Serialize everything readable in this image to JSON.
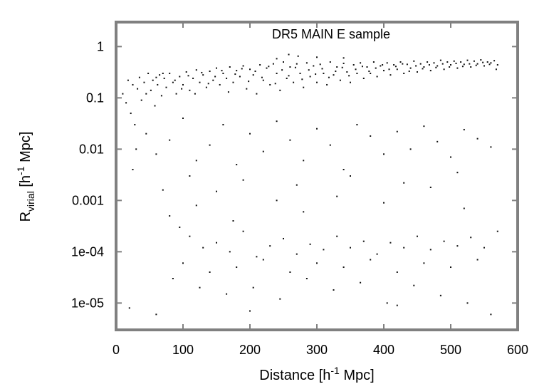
{
  "chart_data": {
    "type": "scatter",
    "title": "DR5 MAIN E sample",
    "xlabel": {
      "before": "Distance [h",
      "sup": "-1",
      "after": " Mpc]"
    },
    "ylabel": {
      "main": "R",
      "sub": "virial",
      "mid": " [h",
      "sup": "-1",
      "after": " Mpc]"
    },
    "xlim": [
      0,
      600
    ],
    "ylim": [
      3e-06,
      3
    ],
    "yscale": "log",
    "grid": false,
    "legend": "none",
    "x_ticks": [
      0,
      100,
      200,
      300,
      400,
      500,
      600
    ],
    "x_tick_labels": [
      "0",
      "100",
      "200",
      "300",
      "400",
      "500",
      "600"
    ],
    "y_ticks": [
      1,
      0.1,
      0.01,
      0.001,
      0.0001,
      1e-05
    ],
    "y_tick_labels": [
      "1",
      "0.1",
      "0.01",
      "0.001",
      "1e-04",
      "1e-05"
    ],
    "colors": {
      "points": "#111111",
      "axes": "#808080",
      "text": "#000000"
    },
    "series": [
      {
        "points": [
          [
            10,
            0.12
          ],
          [
            15,
            0.08
          ],
          [
            18,
            0.22
          ],
          [
            22,
            0.05
          ],
          [
            25,
            0.18
          ],
          [
            28,
            0.03
          ],
          [
            32,
            0.15
          ],
          [
            35,
            0.25
          ],
          [
            38,
            0.09
          ],
          [
            42,
            0.2
          ],
          [
            45,
            0.12
          ],
          [
            48,
            0.3
          ],
          [
            52,
            0.14
          ],
          [
            55,
            0.22
          ],
          [
            58,
            0.07
          ],
          [
            62,
            0.18
          ],
          [
            65,
            0.28
          ],
          [
            68,
            0.11
          ],
          [
            72,
            0.24
          ],
          [
            75,
            0.16
          ],
          [
            80,
            0.3
          ],
          [
            85,
            0.2
          ],
          [
            90,
            0.12
          ],
          [
            95,
            0.26
          ],
          [
            100,
            0.18
          ],
          [
            105,
            0.32
          ],
          [
            110,
            0.14
          ],
          [
            115,
            0.24
          ],
          [
            120,
            0.35
          ],
          [
            125,
            0.2
          ],
          [
            130,
            0.28
          ],
          [
            135,
            0.16
          ],
          [
            140,
            0.33
          ],
          [
            145,
            0.22
          ],
          [
            150,
            0.38
          ],
          [
            155,
            0.18
          ],
          [
            160,
            0.3
          ],
          [
            165,
            0.24
          ],
          [
            170,
            0.4
          ],
          [
            175,
            0.2
          ],
          [
            180,
            0.34
          ],
          [
            185,
            0.26
          ],
          [
            190,
            0.42
          ],
          [
            195,
            0.15
          ],
          [
            200,
            0.36
          ],
          [
            205,
            0.28
          ],
          [
            210,
            0.12
          ],
          [
            215,
            0.44
          ],
          [
            220,
            0.22
          ],
          [
            225,
            0.38
          ],
          [
            230,
            0.18
          ],
          [
            235,
            0.46
          ],
          [
            240,
            0.3
          ],
          [
            245,
            0.14
          ],
          [
            250,
            0.5
          ],
          [
            255,
            0.24
          ],
          [
            260,
            0.4
          ],
          [
            265,
            0.2
          ],
          [
            270,
            0.46
          ],
          [
            275,
            0.3
          ],
          [
            280,
            0.16
          ],
          [
            285,
            0.48
          ],
          [
            290,
            0.26
          ],
          [
            295,
            0.42
          ],
          [
            300,
            0.2
          ],
          [
            305,
            0.45
          ],
          [
            310,
            0.3
          ],
          [
            315,
            0.18
          ],
          [
            320,
            0.5
          ],
          [
            325,
            0.28
          ],
          [
            330,
            0.4
          ],
          [
            335,
            0.22
          ],
          [
            340,
            0.47
          ],
          [
            345,
            0.32
          ],
          [
            350,
            0.2
          ],
          [
            355,
            0.44
          ],
          [
            360,
            0.3
          ],
          [
            365,
            0.48
          ],
          [
            370,
            0.24
          ],
          [
            375,
            0.4
          ],
          [
            380,
            0.3
          ],
          [
            385,
            0.5
          ],
          [
            390,
            0.26
          ],
          [
            395,
            0.42
          ],
          [
            400,
            0.34
          ],
          [
            405,
            0.48
          ],
          [
            410,
            0.28
          ],
          [
            415,
            0.44
          ],
          [
            420,
            0.36
          ],
          [
            425,
            0.5
          ],
          [
            430,
            0.3
          ],
          [
            435,
            0.45
          ],
          [
            440,
            0.38
          ],
          [
            445,
            0.52
          ],
          [
            450,
            0.32
          ],
          [
            455,
            0.46
          ],
          [
            460,
            0.4
          ],
          [
            465,
            0.5
          ],
          [
            470,
            0.34
          ],
          [
            475,
            0.48
          ],
          [
            480,
            0.42
          ],
          [
            485,
            0.54
          ],
          [
            490,
            0.36
          ],
          [
            495,
            0.5
          ],
          [
            500,
            0.44
          ],
          [
            505,
            0.52
          ],
          [
            510,
            0.38
          ],
          [
            515,
            0.5
          ],
          [
            520,
            0.45
          ],
          [
            525,
            0.54
          ],
          [
            530,
            0.4
          ],
          [
            535,
            0.52
          ],
          [
            540,
            0.46
          ],
          [
            545,
            0.55
          ],
          [
            550,
            0.42
          ],
          [
            555,
            0.5
          ],
          [
            560,
            0.48
          ],
          [
            565,
            0.53
          ],
          [
            570,
            0.44
          ],
          [
            568,
            0.36
          ],
          [
            60,
            0.25
          ],
          [
            70,
            0.3
          ],
          [
            88,
            0.22
          ],
          [
            98,
            0.15
          ],
          [
            108,
            0.27
          ],
          [
            118,
            0.12
          ],
          [
            128,
            0.31
          ],
          [
            138,
            0.19
          ],
          [
            148,
            0.26
          ],
          [
            158,
            0.34
          ],
          [
            168,
            0.13
          ],
          [
            178,
            0.29
          ],
          [
            188,
            0.37
          ],
          [
            198,
            0.21
          ],
          [
            208,
            0.33
          ],
          [
            218,
            0.25
          ],
          [
            228,
            0.41
          ],
          [
            238,
            0.19
          ],
          [
            248,
            0.35
          ],
          [
            258,
            0.27
          ],
          [
            268,
            0.39
          ],
          [
            278,
            0.23
          ],
          [
            288,
            0.35
          ],
          [
            298,
            0.29
          ],
          [
            308,
            0.37
          ],
          [
            318,
            0.25
          ],
          [
            328,
            0.33
          ],
          [
            338,
            0.39
          ],
          [
            348,
            0.27
          ],
          [
            358,
            0.36
          ],
          [
            368,
            0.41
          ],
          [
            378,
            0.33
          ],
          [
            388,
            0.38
          ],
          [
            398,
            0.44
          ],
          [
            408,
            0.36
          ],
          [
            418,
            0.41
          ],
          [
            428,
            0.46
          ],
          [
            438,
            0.33
          ],
          [
            448,
            0.42
          ],
          [
            458,
            0.37
          ],
          [
            468,
            0.44
          ],
          [
            478,
            0.39
          ],
          [
            488,
            0.46
          ],
          [
            498,
            0.4
          ],
          [
            508,
            0.47
          ],
          [
            518,
            0.41
          ],
          [
            528,
            0.46
          ],
          [
            538,
            0.43
          ],
          [
            548,
            0.49
          ],
          [
            558,
            0.45
          ],
          [
            258,
            0.7
          ],
          [
            272,
            0.65
          ],
          [
            300,
            0.62
          ],
          [
            340,
            0.6
          ],
          [
            240,
            0.58
          ],
          [
            30,
            0.01
          ],
          [
            45,
            0.02
          ],
          [
            60,
            0.008
          ],
          [
            80,
            0.015
          ],
          [
            100,
            0.04
          ],
          [
            120,
            0.006
          ],
          [
            140,
            0.012
          ],
          [
            160,
            0.03
          ],
          [
            180,
            0.005
          ],
          [
            200,
            0.02
          ],
          [
            220,
            0.009
          ],
          [
            240,
            0.035
          ],
          [
            260,
            0.015
          ],
          [
            280,
            0.006
          ],
          [
            300,
            0.025
          ],
          [
            320,
            0.012
          ],
          [
            340,
            0.004
          ],
          [
            360,
            0.03
          ],
          [
            380,
            0.018
          ],
          [
            400,
            0.008
          ],
          [
            420,
            0.022
          ],
          [
            440,
            0.01
          ],
          [
            460,
            0.028
          ],
          [
            480,
            0.014
          ],
          [
            500,
            0.007
          ],
          [
            520,
            0.024
          ],
          [
            540,
            0.016
          ],
          [
            560,
            0.011
          ],
          [
            25,
            0.004
          ],
          [
            110,
            0.003
          ],
          [
            190,
            0.0025
          ],
          [
            270,
            0.002
          ],
          [
            350,
            0.003
          ],
          [
            430,
            0.0022
          ],
          [
            510,
            0.0035
          ],
          [
            150,
            0.0015
          ],
          [
            330,
            0.0012
          ],
          [
            470,
            0.0018
          ],
          [
            70,
            0.0016
          ],
          [
            240,
            0.001
          ],
          [
            80,
            0.0005
          ],
          [
            95,
            0.0003
          ],
          [
            110,
            0.0002
          ],
          [
            130,
            0.00012
          ],
          [
            150,
            0.00015
          ],
          [
            170,
            0.0001
          ],
          [
            190,
            0.00025
          ],
          [
            210,
            8e-05
          ],
          [
            230,
            0.00013
          ],
          [
            250,
            0.00018
          ],
          [
            270,
            9e-05
          ],
          [
            290,
            0.00014
          ],
          [
            310,
            0.00011
          ],
          [
            330,
            0.0002
          ],
          [
            350,
            0.00012
          ],
          [
            370,
            0.00016
          ],
          [
            390,
            9e-05
          ],
          [
            410,
            0.00015
          ],
          [
            430,
            0.00012
          ],
          [
            450,
            0.0002
          ],
          [
            470,
            0.00011
          ],
          [
            490,
            0.00016
          ],
          [
            510,
            0.00013
          ],
          [
            530,
            0.00019
          ],
          [
            550,
            0.00012
          ],
          [
            570,
            0.00025
          ],
          [
            100,
            6e-05
          ],
          [
            140,
            4e-05
          ],
          [
            180,
            5e-05
          ],
          [
            220,
            7e-05
          ],
          [
            260,
            4e-05
          ],
          [
            300,
            6e-05
          ],
          [
            340,
            5e-05
          ],
          [
            380,
            7e-05
          ],
          [
            420,
            4e-05
          ],
          [
            460,
            6e-05
          ],
          [
            500,
            5e-05
          ],
          [
            540,
            7e-05
          ],
          [
            85,
            3e-05
          ],
          [
            125,
            2e-05
          ],
          [
            165,
            1.5e-05
          ],
          [
            205,
            2e-05
          ],
          [
            245,
            1.2e-05
          ],
          [
            285,
            3e-05
          ],
          [
            325,
            1.8e-05
          ],
          [
            365,
            2.5e-05
          ],
          [
            405,
            1e-05
          ],
          [
            445,
            2.2e-05
          ],
          [
            485,
            1.4e-05
          ],
          [
            525,
            1e-05
          ],
          [
            20,
            8e-06
          ],
          [
            60,
            6e-06
          ],
          [
            200,
            7e-06
          ],
          [
            420,
            9e-06
          ],
          [
            560,
            6e-06
          ],
          [
            120,
            0.0008
          ],
          [
            280,
            0.0006
          ],
          [
            400,
            0.0009
          ],
          [
            520,
            0.0007
          ],
          [
            175,
            0.0004
          ]
        ]
      }
    ]
  }
}
